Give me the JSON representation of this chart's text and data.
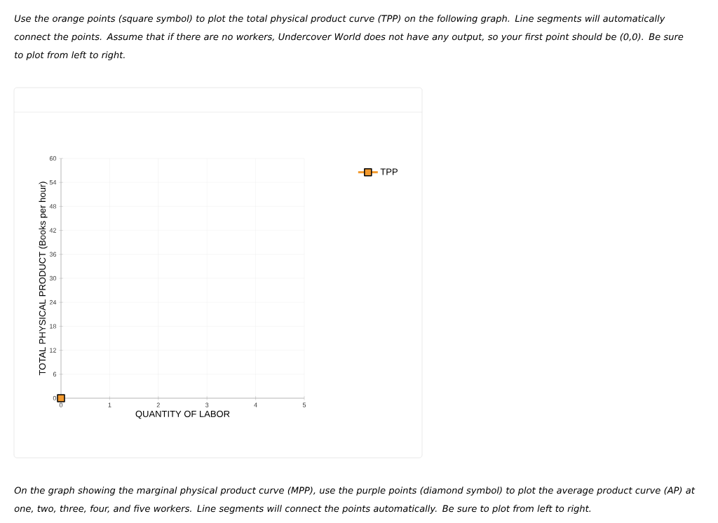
{
  "chart_data": {
    "type": "line",
    "xlabel": "QUANTITY OF LABOR",
    "ylabel": "TOTAL PHYSICAL PRODUCT (Books per hour)",
    "xlim": [
      0,
      5
    ],
    "xticks": [
      0,
      1,
      2,
      3,
      4,
      5
    ],
    "ylim": [
      0,
      60
    ],
    "yticks": [
      0,
      6,
      12,
      18,
      24,
      30,
      36,
      42,
      48,
      54,
      60
    ],
    "grid": true,
    "legend": "top right",
    "marker": "square",
    "series": [
      {
        "name": "TPP",
        "color": "#f39a2e",
        "x": [
          0
        ],
        "values": [
          0
        ]
      }
    ],
    "annotations": [
      "Use the orange points (square symbol) to plot the total physical product curve (TPP) on the following graph. Line segments will automatically connect the points. Assume that if there are no workers, Undercover World does not have any output, so your first point should be (0,0). Be sure to plot from left to right.",
      "On the graph showing the marginal physical product curve (MPP), use the purple points (diamond symbol) to plot the average product curve (AP) at one, two, three, four, and five workers. Line segments will connect the points automatically. Be sure to plot from left to right."
    ]
  }
}
